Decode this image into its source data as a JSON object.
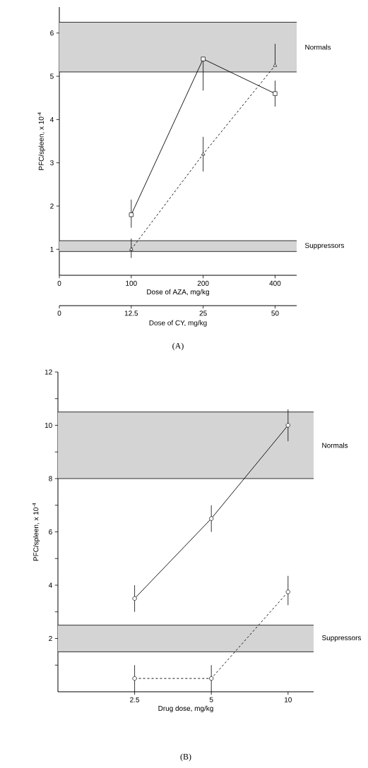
{
  "chart_data": [
    {
      "type": "line",
      "title": "(A)",
      "ylabel": "PFC/spleen, x 10$^{-4}$",
      "xlabel": "Dose of AZA, mg/kg",
      "x2label": "Dose of CY, mg/kg",
      "categories": [
        "0",
        "100",
        "200",
        "400"
      ],
      "annotations": [
        "0",
        "12.5",
        "25",
        "50"
      ],
      "ylim": [
        0.4,
        6.6
      ],
      "yticks": [
        1,
        2,
        3,
        4,
        5,
        6
      ],
      "series": [
        {
          "color": "#000000",
          "marker": "square",
          "line_style": "solid",
          "values": [
            null,
            1.8,
            5.4,
            4.6
          ],
          "errors": [
            null,
            [
              1.5,
              2.15
            ],
            [
              4.67,
              5.4
            ],
            [
              4.3,
              4.9
            ]
          ]
        },
        {
          "color": "#000000",
          "marker": "triangle",
          "line_style": "dashed",
          "values": [
            null,
            1.0,
            3.2,
            5.25
          ],
          "errors": [
            null,
            [
              0.8,
              1.25
            ],
            [
              2.8,
              3.6
            ],
            [
              5.25,
              5.75
            ]
          ]
        }
      ],
      "bands": [
        {
          "axis": "y",
          "from": 5.1,
          "to": 6.25,
          "label": "Normals",
          "color": "#d4d4d4"
        },
        {
          "axis": "y",
          "from": 0.95,
          "to": 1.2,
          "label": "Suppressors",
          "color": "#d4d4d4"
        }
      ]
    },
    {
      "type": "line",
      "title": "(B)",
      "ylabel": "PFC/spleen, x 10$^{-4}$",
      "xlabel": "Drug dose, mg/kg",
      "log": "x",
      "x": [
        2.5,
        5,
        10
      ],
      "xlim": [
        1.25,
        12.6
      ],
      "xticks": [
        2.5,
        5,
        10
      ],
      "ylim": [
        0,
        12
      ],
      "yticks": [
        {
          "value": 1,
          "label": null
        },
        2,
        {
          "value": 3,
          "label": null
        },
        4,
        {
          "value": 5,
          "label": null
        },
        6,
        {
          "value": 7,
          "label": null
        },
        8,
        {
          "value": 9,
          "label": null
        },
        10,
        {
          "value": 11,
          "label": null
        },
        12
      ],
      "series": [
        {
          "color": "#000000",
          "marker": "circle",
          "line_style": "solid",
          "values": [
            3.5,
            6.5,
            10.0
          ],
          "errors": [
            [
              3.0,
              4.0
            ],
            [
              6.0,
              7.0
            ],
            [
              9.4,
              10.6
            ]
          ]
        },
        {
          "color": "#000000",
          "marker": "circle",
          "line_style": "dashed",
          "values": [
            0.5,
            0.5,
            3.75
          ],
          "errors": [
            [
              0.0,
              1.0
            ],
            [
              0.0,
              1.0
            ],
            [
              3.25,
              4.35
            ]
          ]
        }
      ],
      "bands": [
        {
          "axis": "y",
          "from": 8,
          "to": 10.5,
          "label": "Normals",
          "color": "#d4d4d4"
        },
        {
          "axis": "y",
          "from": 1.5,
          "to": 2.5,
          "label": "Suppressors",
          "color": "#d4d4d4"
        }
      ]
    }
  ]
}
